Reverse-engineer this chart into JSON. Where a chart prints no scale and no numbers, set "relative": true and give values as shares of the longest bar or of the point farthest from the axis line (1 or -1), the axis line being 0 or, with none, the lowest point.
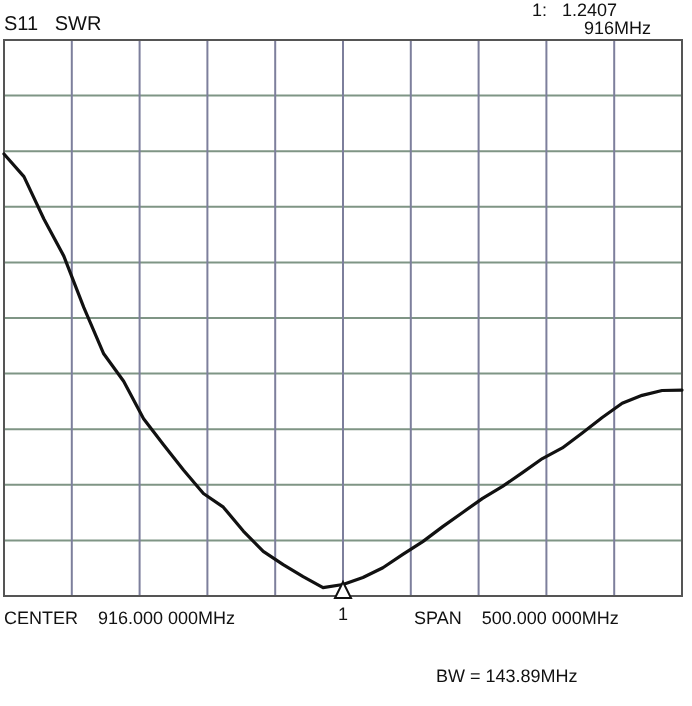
{
  "chart_data": {
    "type": "line",
    "title": "S11   SWR",
    "relative": true,
    "grid": true,
    "categories": [
      null,
      null,
      null,
      null,
      null,
      null,
      null,
      null,
      null,
      null,
      null,
      null,
      null,
      null,
      null,
      null,
      null,
      null,
      null,
      null,
      null,
      null,
      null,
      null,
      null,
      null,
      null,
      null,
      null,
      null,
      null,
      null,
      null,
      null,
      null
    ],
    "series": [
      {
        "color": "#111111",
        "values": [
          1,
          0.949,
          0.853,
          0.769,
          0.653,
          0.548,
          0.486,
          0.401,
          0.342,
          0.285,
          0.232,
          0.201,
          0.147,
          0.101,
          0.071,
          0.044,
          0.019,
          0.026,
          0.042,
          0.064,
          0.094,
          0.123,
          0.157,
          0.189,
          0.221,
          0.248,
          0.279,
          0.311,
          0.335,
          0.369,
          0.404,
          0.436,
          0.454,
          0.465,
          0.466
        ]
      }
    ],
    "marker": "none",
    "line_style": "solid",
    "annotations": [
      "1:   1.2407\n916MHz",
      "CENTER    916.000 000MHz",
      "SPAN    500.000 000MHz",
      "BW = 143.89MHz",
      "1"
    ]
  }
}
